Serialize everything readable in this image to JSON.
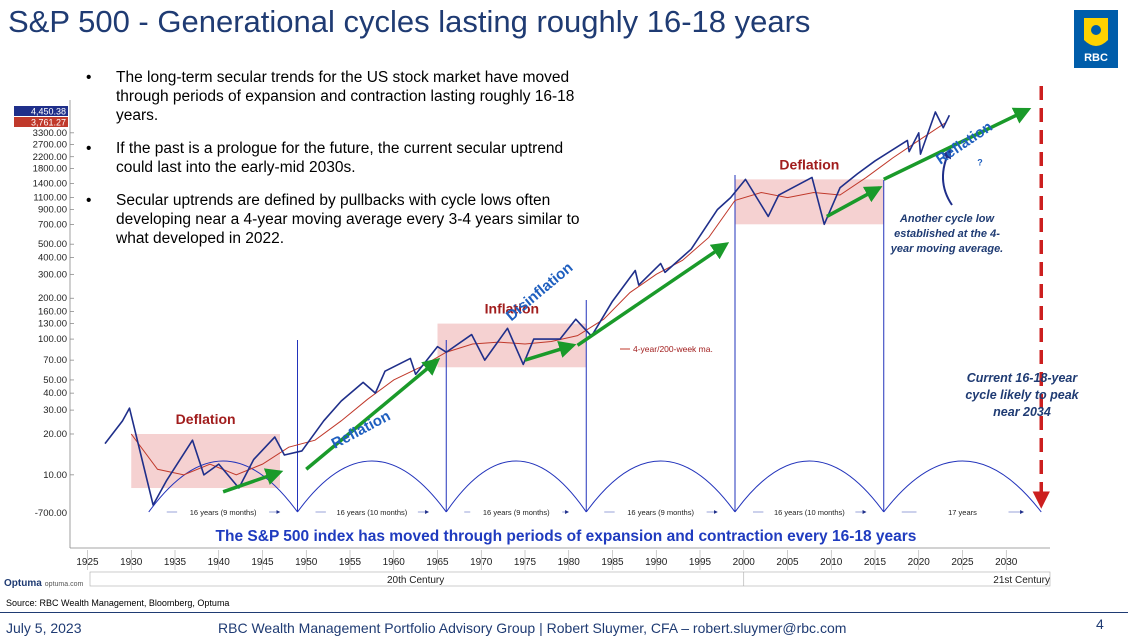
{
  "title": "S&P 500 - Generational cycles lasting roughly 16-18 years",
  "logo_text": "RBC",
  "bullets": [
    "The long-term secular trends for the US stock market have moved through periods of expansion and contraction lasting roughly 16-18 years.",
    "If the past is a prologue for the future, the current secular uptrend could last into the early-mid 2030s.",
    "Secular uptrends are defined by pullbacks with cycle lows often developing near a 4-year moving average every 3-4 years similar to what developed in 2022."
  ],
  "notes": {
    "cycle_low": "Another cycle low established at the 4-year moving average.",
    "current_cycle": "Current 16-18-year cycle likely to peak near 2034"
  },
  "source": "Source: RBC Wealth Management, Bloomberg, Optuma",
  "optuma": {
    "name": "Optuma",
    "url": "optuma.com"
  },
  "footer": {
    "date": "July 5, 2023",
    "credit": "RBC Wealth Management Portfolio Advisory Group  |  Robert Sluymer, CFA – robert.sluymer@rbc.com",
    "page": "4"
  },
  "colors": {
    "title": "#1f3b73",
    "price": "#1f2f8a",
    "ma": "#c0392b",
    "arrow": "#1a9a2a",
    "zone": "#f2c6c6",
    "projection": "#cc1f1f",
    "annotation": "#1f5fbf"
  },
  "chart_data": {
    "type": "line",
    "scale": "log",
    "bottom_caption": "The S&P 500 index has moved through periods of expansion and contraction every 16-18 years",
    "price_labels": [
      "4,450.38",
      "3,761.27"
    ],
    "y_ticks": [
      3300,
      2700,
      2200,
      1800,
      1400,
      1100,
      900,
      700,
      500,
      400,
      300,
      200,
      160,
      130,
      100,
      70,
      50,
      40,
      30,
      20,
      10
    ],
    "y_tick_labels": [
      "3300.00",
      "2700.00",
      "2200.00",
      "1800.00",
      "1400.00",
      "1100.00",
      "900.00",
      "700.00",
      "500.00",
      "400.00",
      "300.00",
      "200.00",
      "160.00",
      "130.00",
      "100.00",
      "70.00",
      "50.00",
      "40.00",
      "30.00",
      "20.00",
      "10.00"
    ],
    "bottom_tick_label": "-700.00",
    "x_ticks": [
      1925,
      1930,
      1935,
      1940,
      1945,
      1950,
      1955,
      1960,
      1965,
      1970,
      1975,
      1980,
      1985,
      1990,
      1995,
      2000,
      2005,
      2010,
      2015,
      2020,
      2025,
      2030
    ],
    "centuries": [
      "20th Century",
      "21st Century"
    ],
    "series": [
      {
        "name": "S&P 500",
        "x": [
          1927,
          1929,
          1929.8,
          1932.5,
          1934,
          1937,
          1938.3,
          1940,
          1942.3,
          1944,
          1946.4,
          1947.5,
          1949.5,
          1952,
          1954,
          1956.5,
          1957.9,
          1959,
          1961.9,
          1962.5,
          1965,
          1966,
          1968.9,
          1970.4,
          1973,
          1974.8,
          1976,
          1979,
          1980.8,
          1982.6,
          1985,
          1987.6,
          1988,
          1990.5,
          1991,
          1994,
          1997,
          1998.5,
          2000.2,
          2002.8,
          2004,
          2007.8,
          2009.2,
          2011,
          2013,
          2015,
          2018.7,
          2018.9,
          2020,
          2020.2,
          2021.9,
          2022.8,
          2023.5
        ],
        "y": [
          17,
          25,
          31,
          6,
          9,
          18,
          10,
          12,
          8,
          13,
          19,
          14,
          15,
          25,
          35,
          48,
          40,
          58,
          72,
          55,
          88,
          80,
          108,
          70,
          120,
          65,
          100,
          100,
          140,
          105,
          190,
          320,
          250,
          360,
          310,
          460,
          900,
          1100,
          1500,
          800,
          1150,
          1550,
          700,
          1300,
          1650,
          2050,
          2900,
          2400,
          3300,
          2300,
          4700,
          3600,
          4450
        ]
      },
      {
        "name": "4-year/200-week ma.",
        "x": [
          1930,
          1933,
          1936,
          1939,
          1942,
          1945,
          1948,
          1951,
          1954,
          1957,
          1960,
          1963,
          1966,
          1969,
          1972,
          1975,
          1978,
          1981,
          1984,
          1987,
          1990,
          1993,
          1996,
          1999,
          2002,
          2005,
          2008,
          2011,
          2014,
          2017,
          2020,
          2023
        ],
        "y": [
          20,
          11,
          10,
          12,
          10,
          12,
          16,
          18,
          25,
          36,
          50,
          62,
          80,
          92,
          95,
          92,
          96,
          106,
          140,
          220,
          300,
          380,
          560,
          1050,
          1200,
          1100,
          1200,
          1150,
          1550,
          2150,
          2900,
          3900
        ]
      }
    ],
    "zones": [
      {
        "label": "Deflation",
        "x": [
          1930,
          1947
        ],
        "y": [
          8,
          20
        ]
      },
      {
        "label": "Inflation",
        "x": [
          1965,
          1982
        ],
        "y": [
          62,
          130
        ]
      },
      {
        "label": "Deflation",
        "x": [
          1999,
          2016
        ],
        "y": [
          700,
          1500
        ]
      }
    ],
    "trend_labels": [
      "Reflation",
      "Disinflation",
      "Reflation",
      "?"
    ],
    "ma_label": "4-year/200-week ma.",
    "cycle_lows": [
      1932,
      1949,
      1966,
      1982,
      1999,
      2016,
      2034
    ],
    "cycle_labels": [
      "16 years (9 months)",
      "16 years (10 months)",
      "16 years (9 months)",
      "16 years (9 months)",
      "16 years (10 months)",
      "17 years"
    ]
  }
}
